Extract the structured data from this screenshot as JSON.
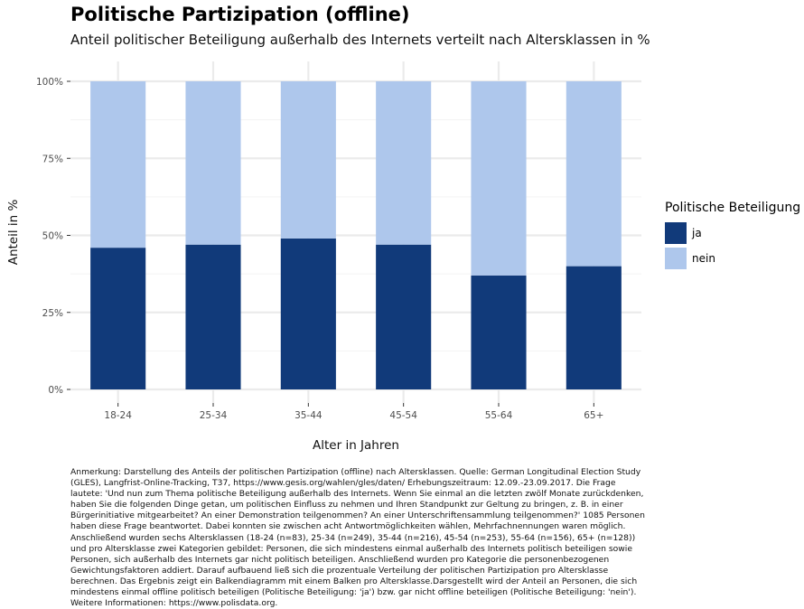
{
  "header": {
    "title": "Politische Partizipation (offline)",
    "subtitle": "Anteil politischer Beteiligung außerhalb des Internets verteilt nach Altersklassen in %"
  },
  "legend": {
    "title": "Politische Beteiligung",
    "items": [
      {
        "label": "ja",
        "color": "#113a7a"
      },
      {
        "label": "nein",
        "color": "#aec7ec"
      }
    ]
  },
  "note": "Anmerkung: Darstellung des Anteils der politischen Partizipation (offline) nach Altersklassen. Quelle: German Longitudinal Election Study (GLES), Langfrist-Online-Tracking, T37, https://www.gesis.org/wahlen/gles/daten/ Erhebungszeitraum: 12.09.-23.09.2017. Die Frage lautete: 'Und nun zum Thema politische Beteiligung außerhalb des Internets. Wenn Sie einmal an die letzten zwölf Monate zurückdenken, haben Sie die folgenden Dinge getan, um politischen Einfluss zu nehmen und Ihren Standpunkt zur Geltung zu bringen, z. B. in einer Bürgerinitiative mitgearbeitet? An einer Demonstration teilgenommen? An einer Unterschriftensammlung teilgenommen?' 1085 Personen haben diese Frage beantwortet. Dabei konnten sie zwischen acht Antwortmöglichkeiten wählen, Mehrfachnennungen waren möglich. Anschließend wurden sechs Altersklassen (18-24 (n=83), 25-34 (n=249), 35-44 (n=216), 45-54 (n=253), 55-64 (n=156), 65+ (n=128)) und pro Altersklasse zwei Kategorien gebildet: Personen, die sich mindestens einmal außerhalb des Internets politisch beteiligen sowie Personen, sich außerhalb des Internets gar nicht politisch beteiligen. Anschließend wurden pro Kategorie die personenbezogenen Gewichtungsfaktoren addiert. Darauf aufbauend ließ sich die prozentuale Verteilung der politischen Partizipation pro Altersklasse berechnen. Das Ergebnis zeigt ein Balkendiagramm mit einem Balken pro Altersklasse.Darsgestellt wird der Anteil an Personen, die sich mindestens einmal offline politisch beteiligen (Politische Beteiligung: 'ja') bzw. gar nicht offline beteiligen (Politische Beteiligung: 'nein'). Weitere Informationen: https://www.polisdata.org.",
  "chart_data": {
    "type": "bar",
    "stacked": true,
    "categories": [
      "18-24",
      "25-34",
      "35-44",
      "45-54",
      "55-64",
      "65+"
    ],
    "series": [
      {
        "name": "ja",
        "values": [
          46,
          47,
          49,
          47,
          37,
          40
        ],
        "color": "#113a7a"
      },
      {
        "name": "nein",
        "values": [
          54,
          53,
          51,
          53,
          63,
          60
        ],
        "color": "#aec7ec"
      }
    ],
    "xlabel": "Alter in Jahren",
    "ylabel": "Anteil in %",
    "ylim": [
      0,
      100
    ],
    "yticks": [
      0,
      25,
      50,
      75,
      100
    ],
    "ytick_labels": [
      "0%",
      "25%",
      "50%",
      "75%",
      "100%"
    ],
    "grid": true,
    "legend_position": "right"
  }
}
